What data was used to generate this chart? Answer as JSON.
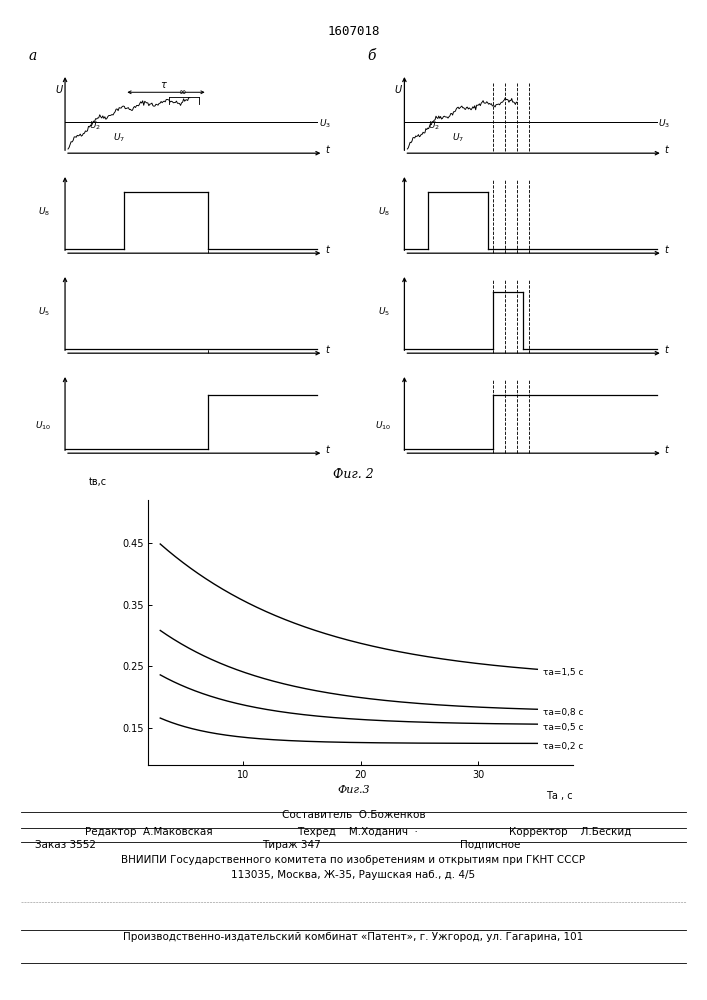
{
  "patent_number": "1607018",
  "fig2_label": "Фиг. 2",
  "fig3_label": "Фиг.3",
  "panel_a_label": "a",
  "panel_b_label": "б",
  "curves": {
    "tau_values": [
      1.5,
      0.8,
      0.5,
      0.2
    ],
    "tau_labels": [
      "τа=1,5 с",
      "τа=0,8 с",
      "τа=0,5 с",
      "τа=0,2 с"
    ],
    "T_start": 3,
    "T_end": 35,
    "y_label": "tв,с",
    "x_label": "Tа , с",
    "x_ticks": [
      10,
      20,
      30
    ],
    "y_ticks": [
      0.15,
      0.25,
      0.35,
      0.45
    ],
    "ylim": [
      0.09,
      0.52
    ],
    "xlim": [
      2,
      38
    ]
  },
  "footer": {
    "sestavitel": "Составитель  О.Боженков",
    "redaktor": "Редактор  А.Маковская",
    "tehred": "Техред    М.Ходанич  ·",
    "korrektor": "Корректор    Л.Бескид",
    "zakaz": "Заказ 3552",
    "tirazh": "Тираж 347",
    "podpisnoe": "Подписное",
    "vnipi": "ВНИИПИ Государственного комитета по изобретениям и открытиям при ГКНТ СССР",
    "address": "113035, Москва, Ж-35, Раушская наб., д. 4/5",
    "proizv": "Производственно-издательский комбинат «Патент», г. Ужгород, ул. Гагарина, 101"
  }
}
